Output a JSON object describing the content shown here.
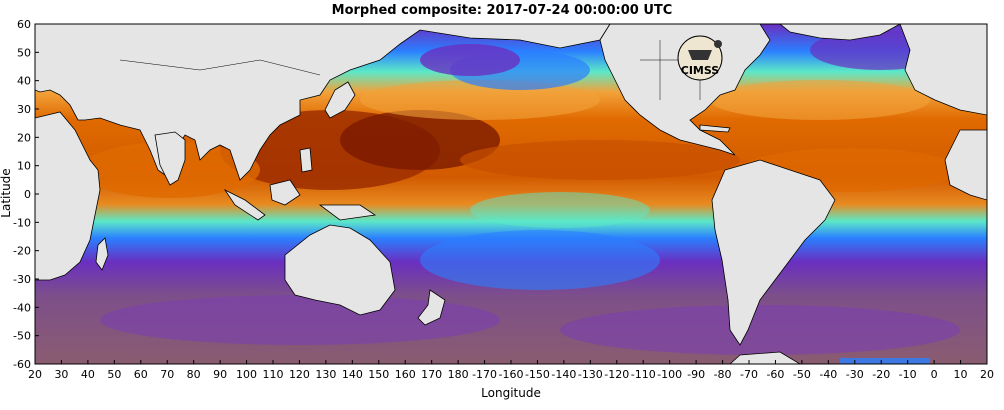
{
  "title": "Morphed composite: 2017-07-24 00:00:00 UTC",
  "xlabel": "Longitude",
  "ylabel": "Latitude",
  "logo_text": "CIMSS",
  "x_ticks": [
    "20",
    "30",
    "40",
    "50",
    "60",
    "70",
    "80",
    "90",
    "100",
    "110",
    "120",
    "130",
    "140",
    "150",
    "160",
    "170",
    "180",
    "-170",
    "-160",
    "-150",
    "-140",
    "-130",
    "-120",
    "-110",
    "-100",
    "-90",
    "-80",
    "-70",
    "-60",
    "-50",
    "-40",
    "-30",
    "-20",
    "-10",
    "0",
    "10",
    "20"
  ],
  "y_ticks": [
    "60",
    "50",
    "40",
    "30",
    "20",
    "10",
    "0",
    "-10",
    "-20",
    "-30",
    "-40",
    "-50",
    "-60"
  ],
  "colors": {
    "land": "#e5e5e5",
    "very_moist": "#7a1a00",
    "moist": "#e06a00",
    "moderate": "#f2a23a",
    "medium": "#5ce8c8",
    "low": "#2b7fff",
    "dry": "#6a2fc0",
    "very_dry": "#8a5c70"
  }
}
